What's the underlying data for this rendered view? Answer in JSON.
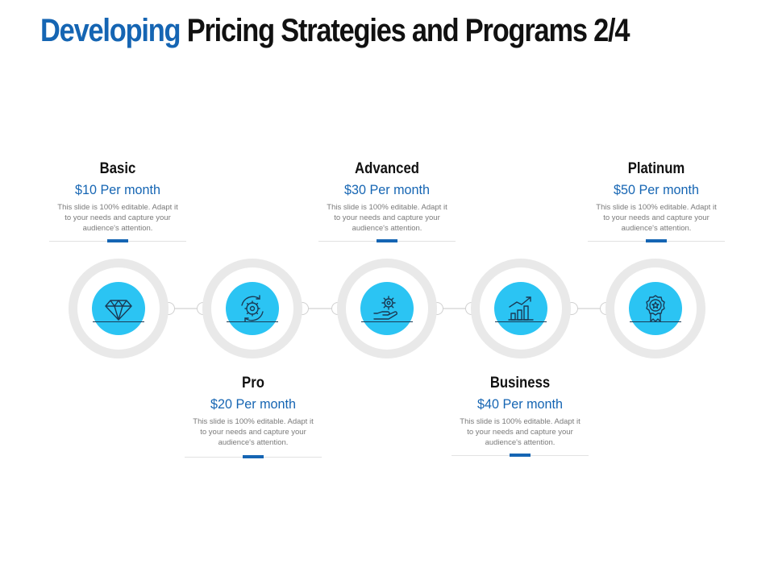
{
  "title": {
    "accent": "Developing",
    "rest": "Pricing Strategies and Programs 2/4"
  },
  "colors": {
    "accent": "#1565b3",
    "icon_disc": "#2bc4f3",
    "ring": "#e9e9e9"
  },
  "plans": [
    {
      "name": "Basic",
      "price": "$10 Per month",
      "description": "This slide is 100% editable. Adapt it to your needs and capture your audience's attention.",
      "icon": "diamond-icon"
    },
    {
      "name": "Pro",
      "price": "$20 Per month",
      "description": "This slide is 100% editable. Adapt it to your needs and capture your audience's attention.",
      "icon": "gear-cycle-icon"
    },
    {
      "name": "Advanced",
      "price": "$30 Per month",
      "description": "This slide is 100% editable. Adapt it to your needs and capture your audience's attention.",
      "icon": "hand-gear-icon"
    },
    {
      "name": "Business",
      "price": "$40 Per month",
      "description": "This slide is 100% editable. Adapt it to your needs and capture your audience's attention.",
      "icon": "growth-chart-icon"
    },
    {
      "name": "Platinum",
      "price": "$50 Per month",
      "description": "This slide is 100% editable. Adapt it to your needs and capture your audience's attention.",
      "icon": "award-badge-icon"
    }
  ]
}
